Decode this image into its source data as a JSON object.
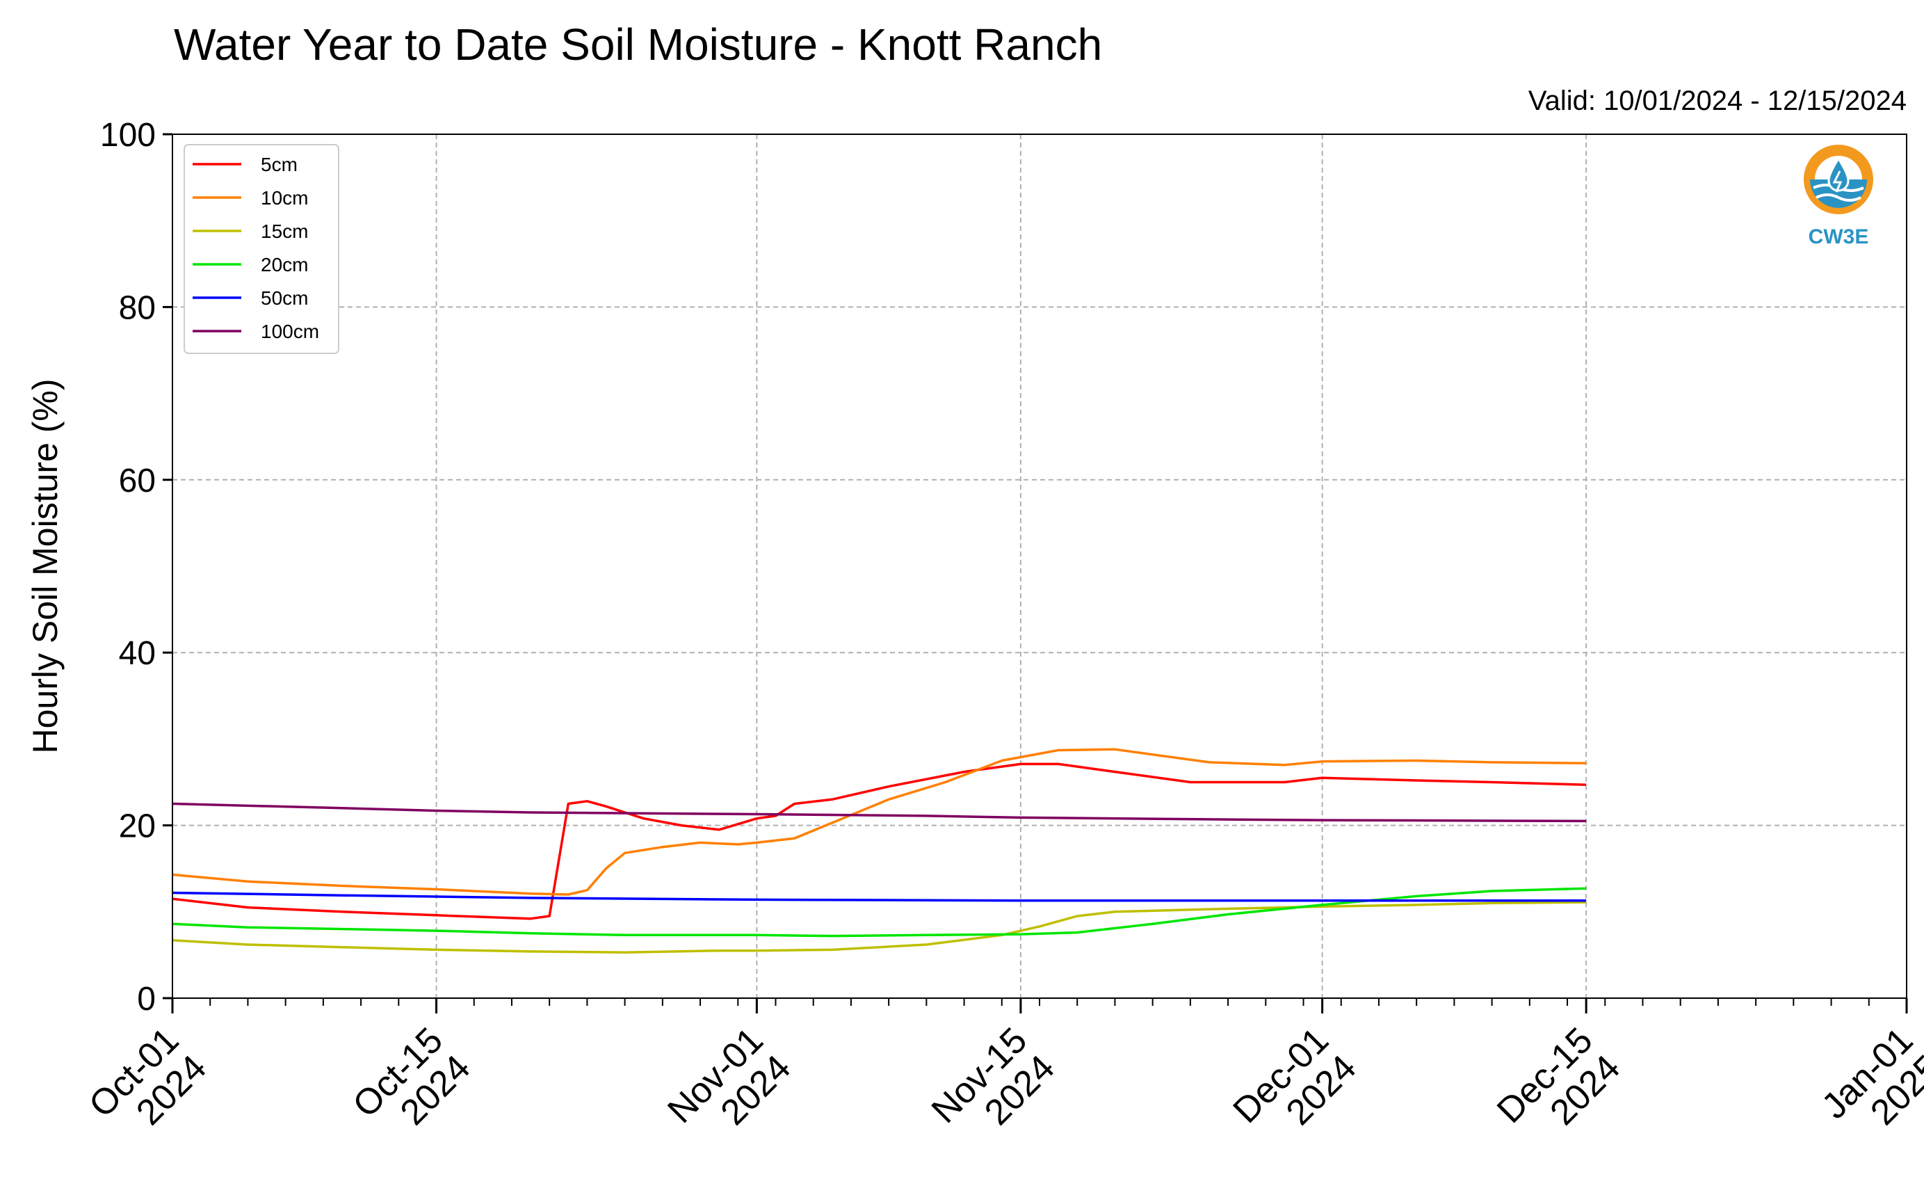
{
  "chart_data": {
    "type": "line",
    "title": "Water Year to Date Soil Moisture - Knott Ranch",
    "subtitle": "Valid: 10/01/2024 - 12/15/2024",
    "ylabel": "Hourly Soil Moisture (%)",
    "xlabel": "",
    "ylim": [
      0,
      100
    ],
    "xlim": [
      "2024-10-01",
      "2025-01-01"
    ],
    "yticks": [
      0,
      20,
      40,
      60,
      80,
      100
    ],
    "xticks": [
      {
        "date": "2024-10-01",
        "line1": "Oct-01",
        "line2": "2024"
      },
      {
        "date": "2024-10-15",
        "line1": "Oct-15",
        "line2": "2024"
      },
      {
        "date": "2024-11-01",
        "line1": "Nov-01",
        "line2": "2024"
      },
      {
        "date": "2024-11-15",
        "line1": "Nov-15",
        "line2": "2024"
      },
      {
        "date": "2024-12-01",
        "line1": "Dec-01",
        "line2": "2024"
      },
      {
        "date": "2024-12-15",
        "line1": "Dec-15",
        "line2": "2024"
      },
      {
        "date": "2025-01-01",
        "line1": "Jan-01",
        "line2": "2025"
      }
    ],
    "grid": true,
    "legend_position": "top-left",
    "series": [
      {
        "name": "5cm",
        "color": "#ff0000",
        "x": [
          "2024-10-01",
          "2024-10-05",
          "2024-10-10",
          "2024-10-15",
          "2024-10-20",
          "2024-10-21",
          "2024-10-22",
          "2024-10-23",
          "2024-10-24",
          "2024-10-26",
          "2024-10-28",
          "2024-10-30",
          "2024-11-01",
          "2024-11-02",
          "2024-11-03",
          "2024-11-05",
          "2024-11-08",
          "2024-11-12",
          "2024-11-15",
          "2024-11-17",
          "2024-11-20",
          "2024-11-24",
          "2024-11-29",
          "2024-12-01",
          "2024-12-06",
          "2024-12-10",
          "2024-12-15"
        ],
        "y": [
          11.5,
          10.5,
          10,
          9.6,
          9.2,
          9.5,
          22.5,
          22.8,
          22.2,
          20.8,
          20,
          19.5,
          20.8,
          21.1,
          22.5,
          23,
          24.5,
          26.2,
          27.1,
          27.1,
          26.2,
          25,
          25,
          25.5,
          25.2,
          25,
          24.7
        ]
      },
      {
        "name": "10cm",
        "color": "#ff8000",
        "x": [
          "2024-10-01",
          "2024-10-05",
          "2024-10-10",
          "2024-10-15",
          "2024-10-20",
          "2024-10-22",
          "2024-10-23",
          "2024-10-24",
          "2024-10-25",
          "2024-10-27",
          "2024-10-29",
          "2024-10-31",
          "2024-11-01",
          "2024-11-03",
          "2024-11-05",
          "2024-11-08",
          "2024-11-11",
          "2024-11-14",
          "2024-11-17",
          "2024-11-20",
          "2024-11-25",
          "2024-11-29",
          "2024-12-01",
          "2024-12-06",
          "2024-12-10",
          "2024-12-15"
        ],
        "y": [
          14.3,
          13.5,
          13,
          12.6,
          12.1,
          12,
          12.5,
          15,
          16.8,
          17.5,
          18,
          17.8,
          18,
          18.5,
          20.3,
          23,
          25,
          27.5,
          28.7,
          28.8,
          27.3,
          27,
          27.4,
          27.5,
          27.3,
          27.2
        ]
      },
      {
        "name": "15cm",
        "color": "#bfbf00",
        "x": [
          "2024-10-01",
          "2024-10-05",
          "2024-10-10",
          "2024-10-15",
          "2024-10-20",
          "2024-10-25",
          "2024-10-30",
          "2024-11-01",
          "2024-11-05",
          "2024-11-10",
          "2024-11-14",
          "2024-11-16",
          "2024-11-18",
          "2024-11-20",
          "2024-11-25",
          "2024-12-01",
          "2024-12-06",
          "2024-12-10",
          "2024-12-15"
        ],
        "y": [
          6.7,
          6.2,
          5.9,
          5.6,
          5.4,
          5.3,
          5.5,
          5.5,
          5.6,
          6.2,
          7.3,
          8.3,
          9.5,
          10,
          10.3,
          10.6,
          10.8,
          11,
          11.1
        ]
      },
      {
        "name": "20cm",
        "color": "#00e600",
        "x": [
          "2024-10-01",
          "2024-10-05",
          "2024-10-10",
          "2024-10-15",
          "2024-10-20",
          "2024-10-25",
          "2024-11-01",
          "2024-11-05",
          "2024-11-10",
          "2024-11-15",
          "2024-11-18",
          "2024-11-22",
          "2024-11-26",
          "2024-12-01",
          "2024-12-06",
          "2024-12-10",
          "2024-12-15"
        ],
        "y": [
          8.6,
          8.2,
          8,
          7.8,
          7.5,
          7.3,
          7.3,
          7.2,
          7.3,
          7.4,
          7.6,
          8.6,
          9.7,
          10.8,
          11.8,
          12.4,
          12.7
        ]
      },
      {
        "name": "50cm",
        "color": "#0000ff",
        "x": [
          "2024-10-01",
          "2024-10-10",
          "2024-10-20",
          "2024-11-01",
          "2024-11-15",
          "2024-12-01",
          "2024-12-15"
        ],
        "y": [
          12.2,
          11.9,
          11.6,
          11.4,
          11.3,
          11.3,
          11.3
        ]
      },
      {
        "name": "100cm",
        "color": "#800060",
        "x": [
          "2024-10-01",
          "2024-10-10",
          "2024-10-15",
          "2024-10-20",
          "2024-11-01",
          "2024-11-10",
          "2024-11-15",
          "2024-11-25",
          "2024-12-01",
          "2024-12-15"
        ],
        "y": [
          22.5,
          22,
          21.7,
          21.5,
          21.3,
          21.1,
          20.9,
          20.7,
          20.6,
          20.5
        ]
      }
    ]
  },
  "logo": {
    "text": "CW3E",
    "colors": {
      "ring": "#f39a1e",
      "wave": "#2a93c4"
    }
  }
}
